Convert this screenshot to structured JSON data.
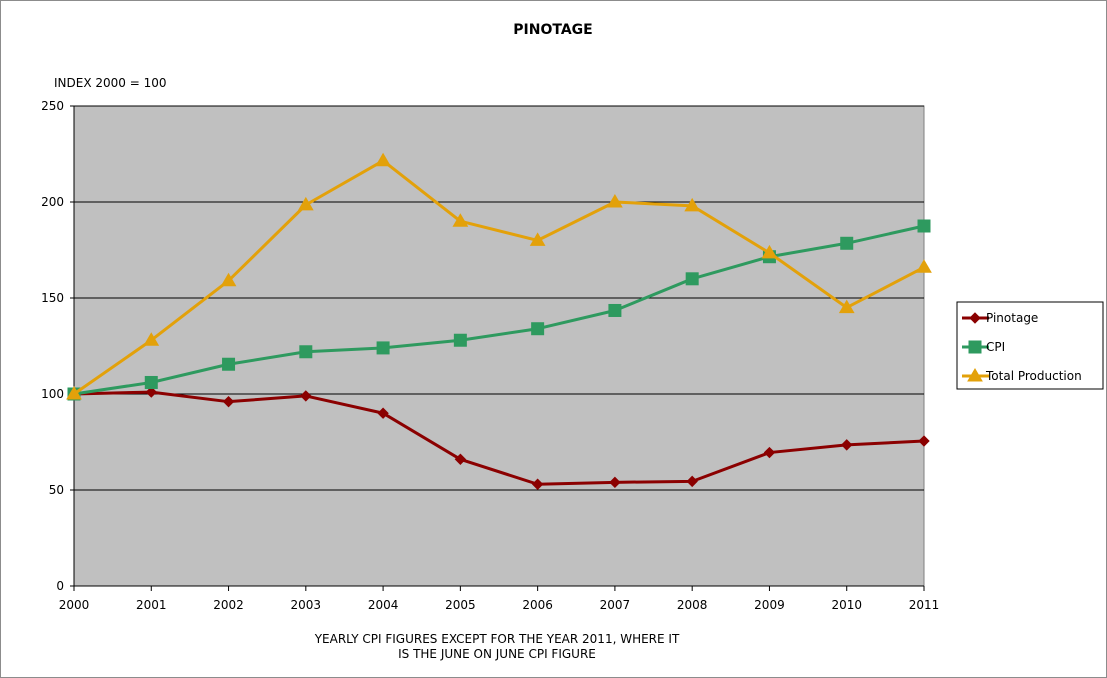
{
  "chart_data": {
    "type": "line",
    "title": "PINOTAGE",
    "ylabel": "INDEX 2000 = 100",
    "xlabel_lines": [
      "YEARLY CPI FIGURES EXCEPT FOR THE YEAR 2011, WHERE IT",
      "IS THE JUNE ON JUNE CPI FIGURE"
    ],
    "categories": [
      "2000",
      "2001",
      "2002",
      "2003",
      "2004",
      "2005",
      "2006",
      "2007",
      "2008",
      "2009",
      "2010",
      "2011"
    ],
    "ylim": [
      0,
      250
    ],
    "yticks": [
      0,
      50,
      100,
      150,
      200,
      250
    ],
    "grid": true,
    "legend_position": "right",
    "series": [
      {
        "name": "Pinotage",
        "color": "#8b0000",
        "marker": "diamond",
        "values": [
          100,
          101,
          96,
          99,
          90,
          66,
          53,
          54,
          54.5,
          69.5,
          73.5,
          75.5
        ]
      },
      {
        "name": "CPI",
        "color": "#2e9a5f",
        "marker": "square",
        "values": [
          100,
          106,
          115.5,
          122,
          124,
          128,
          134,
          143.5,
          160,
          171.5,
          178.5,
          187.5
        ]
      },
      {
        "name": "Total Production",
        "color": "#e3a10a",
        "marker": "triangle",
        "values": [
          100,
          128,
          159,
          198.5,
          221.5,
          190,
          180,
          200,
          198,
          173.5,
          145,
          166
        ]
      }
    ]
  }
}
